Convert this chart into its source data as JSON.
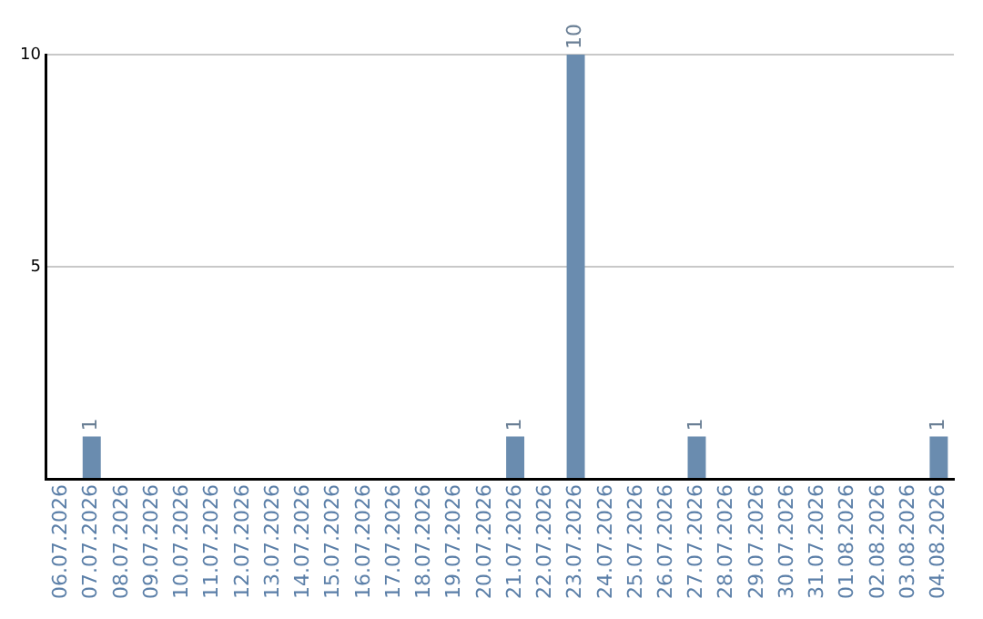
{
  "chart_data": {
    "type": "bar",
    "categories": [
      "06.07.2026",
      "07.07.2026",
      "08.07.2026",
      "09.07.2026",
      "10.07.2026",
      "11.07.2026",
      "12.07.2026",
      "13.07.2026",
      "14.07.2026",
      "15.07.2026",
      "16.07.2026",
      "17.07.2026",
      "18.07.2026",
      "19.07.2026",
      "20.07.2026",
      "21.07.2026",
      "22.07.2026",
      "23.07.2026",
      "24.07.2026",
      "25.07.2026",
      "26.07.2026",
      "27.07.2026",
      "28.07.2026",
      "29.07.2026",
      "30.07.2026",
      "31.07.2026",
      "01.08.2026",
      "02.08.2026",
      "03.08.2026",
      "04.08.2026"
    ],
    "values": [
      0,
      1,
      0,
      0,
      0,
      0,
      0,
      0,
      0,
      0,
      0,
      0,
      0,
      0,
      0,
      1,
      0,
      10,
      0,
      0,
      0,
      1,
      0,
      0,
      0,
      0,
      0,
      0,
      0,
      1
    ],
    "value_labels": [
      null,
      "1",
      null,
      null,
      null,
      null,
      null,
      null,
      null,
      null,
      null,
      null,
      null,
      null,
      null,
      "1",
      null,
      "10",
      null,
      null,
      null,
      "1",
      null,
      null,
      null,
      null,
      null,
      null,
      null,
      "1"
    ],
    "color": "#6a8caf",
    "ylim": [
      0,
      10
    ],
    "yticks": [
      {
        "value": 0,
        "label": null
      },
      5,
      10
    ],
    "grid": "y",
    "legend": false
  }
}
